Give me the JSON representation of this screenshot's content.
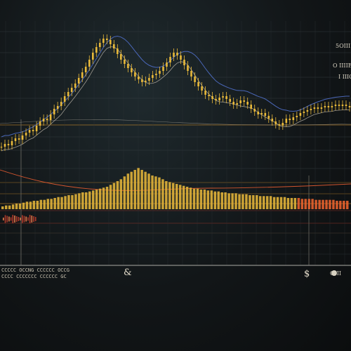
{
  "chart_data": {
    "type": "bar",
    "x_label_left_row1": "CCCCC OCCNG CCCCCC OCCG",
    "x_label_left_row2": "CCCC CCCCCCC CCCCCC GC",
    "x_symbol_mid": "&",
    "x_symbol_right": "$",
    "right_labels": [
      "5OIII",
      "O IIIIE",
      "I IIIC",
      "OIII"
    ],
    "colors": {
      "candle": "#e8b93a",
      "volume": "#e0b23a",
      "volume_hot": "#e8622e",
      "ma_blue": "#4a67b8",
      "ma_light": "#b7b0a4",
      "ma_red": "#d2552e",
      "grid_amber": "#c88a2a",
      "grid_red": "#b13a2a"
    },
    "price_series": [
      18,
      20,
      19,
      22,
      24,
      23,
      26,
      28,
      30,
      29,
      33,
      36,
      38,
      37,
      41,
      45,
      47,
      50,
      54,
      57,
      60,
      63,
      67,
      71,
      75,
      80,
      85,
      89,
      92,
      95,
      94,
      91,
      88,
      84,
      80,
      77,
      74,
      71,
      68,
      66,
      64,
      65,
      67,
      69,
      70,
      72,
      75,
      78,
      82,
      85,
      83,
      80,
      76,
      72,
      68,
      64,
      61,
      58,
      55,
      54,
      52,
      51,
      53,
      54,
      52,
      50,
      48,
      49,
      51,
      50,
      48,
      45,
      43,
      41,
      42,
      40,
      38,
      36,
      34,
      33,
      35,
      38,
      37,
      39,
      40,
      42,
      43,
      44,
      45,
      46,
      45,
      46,
      47,
      46,
      47,
      48,
      47,
      48,
      47,
      46
    ],
    "volume_series": [
      3,
      4,
      4,
      5,
      6,
      6,
      7,
      8,
      8,
      9,
      9,
      10,
      10,
      11,
      11,
      12,
      13,
      13,
      14,
      15,
      15,
      16,
      17,
      18,
      18,
      19,
      20,
      21,
      22,
      23,
      24,
      26,
      28,
      30,
      32,
      35,
      38,
      40,
      42,
      44,
      42,
      40,
      38,
      36,
      35,
      34,
      32,
      30,
      29,
      28,
      27,
      26,
      25,
      24,
      23,
      22,
      22,
      21,
      21,
      20,
      20,
      19,
      19,
      18,
      18,
      17,
      17,
      17,
      16,
      16,
      16,
      15,
      15,
      15,
      14,
      14,
      14,
      14,
      13,
      13,
      13,
      13,
      12,
      12,
      12,
      12,
      11,
      11,
      11,
      11,
      10,
      10,
      10,
      10,
      10,
      10,
      9,
      9,
      9,
      9
    ]
  }
}
